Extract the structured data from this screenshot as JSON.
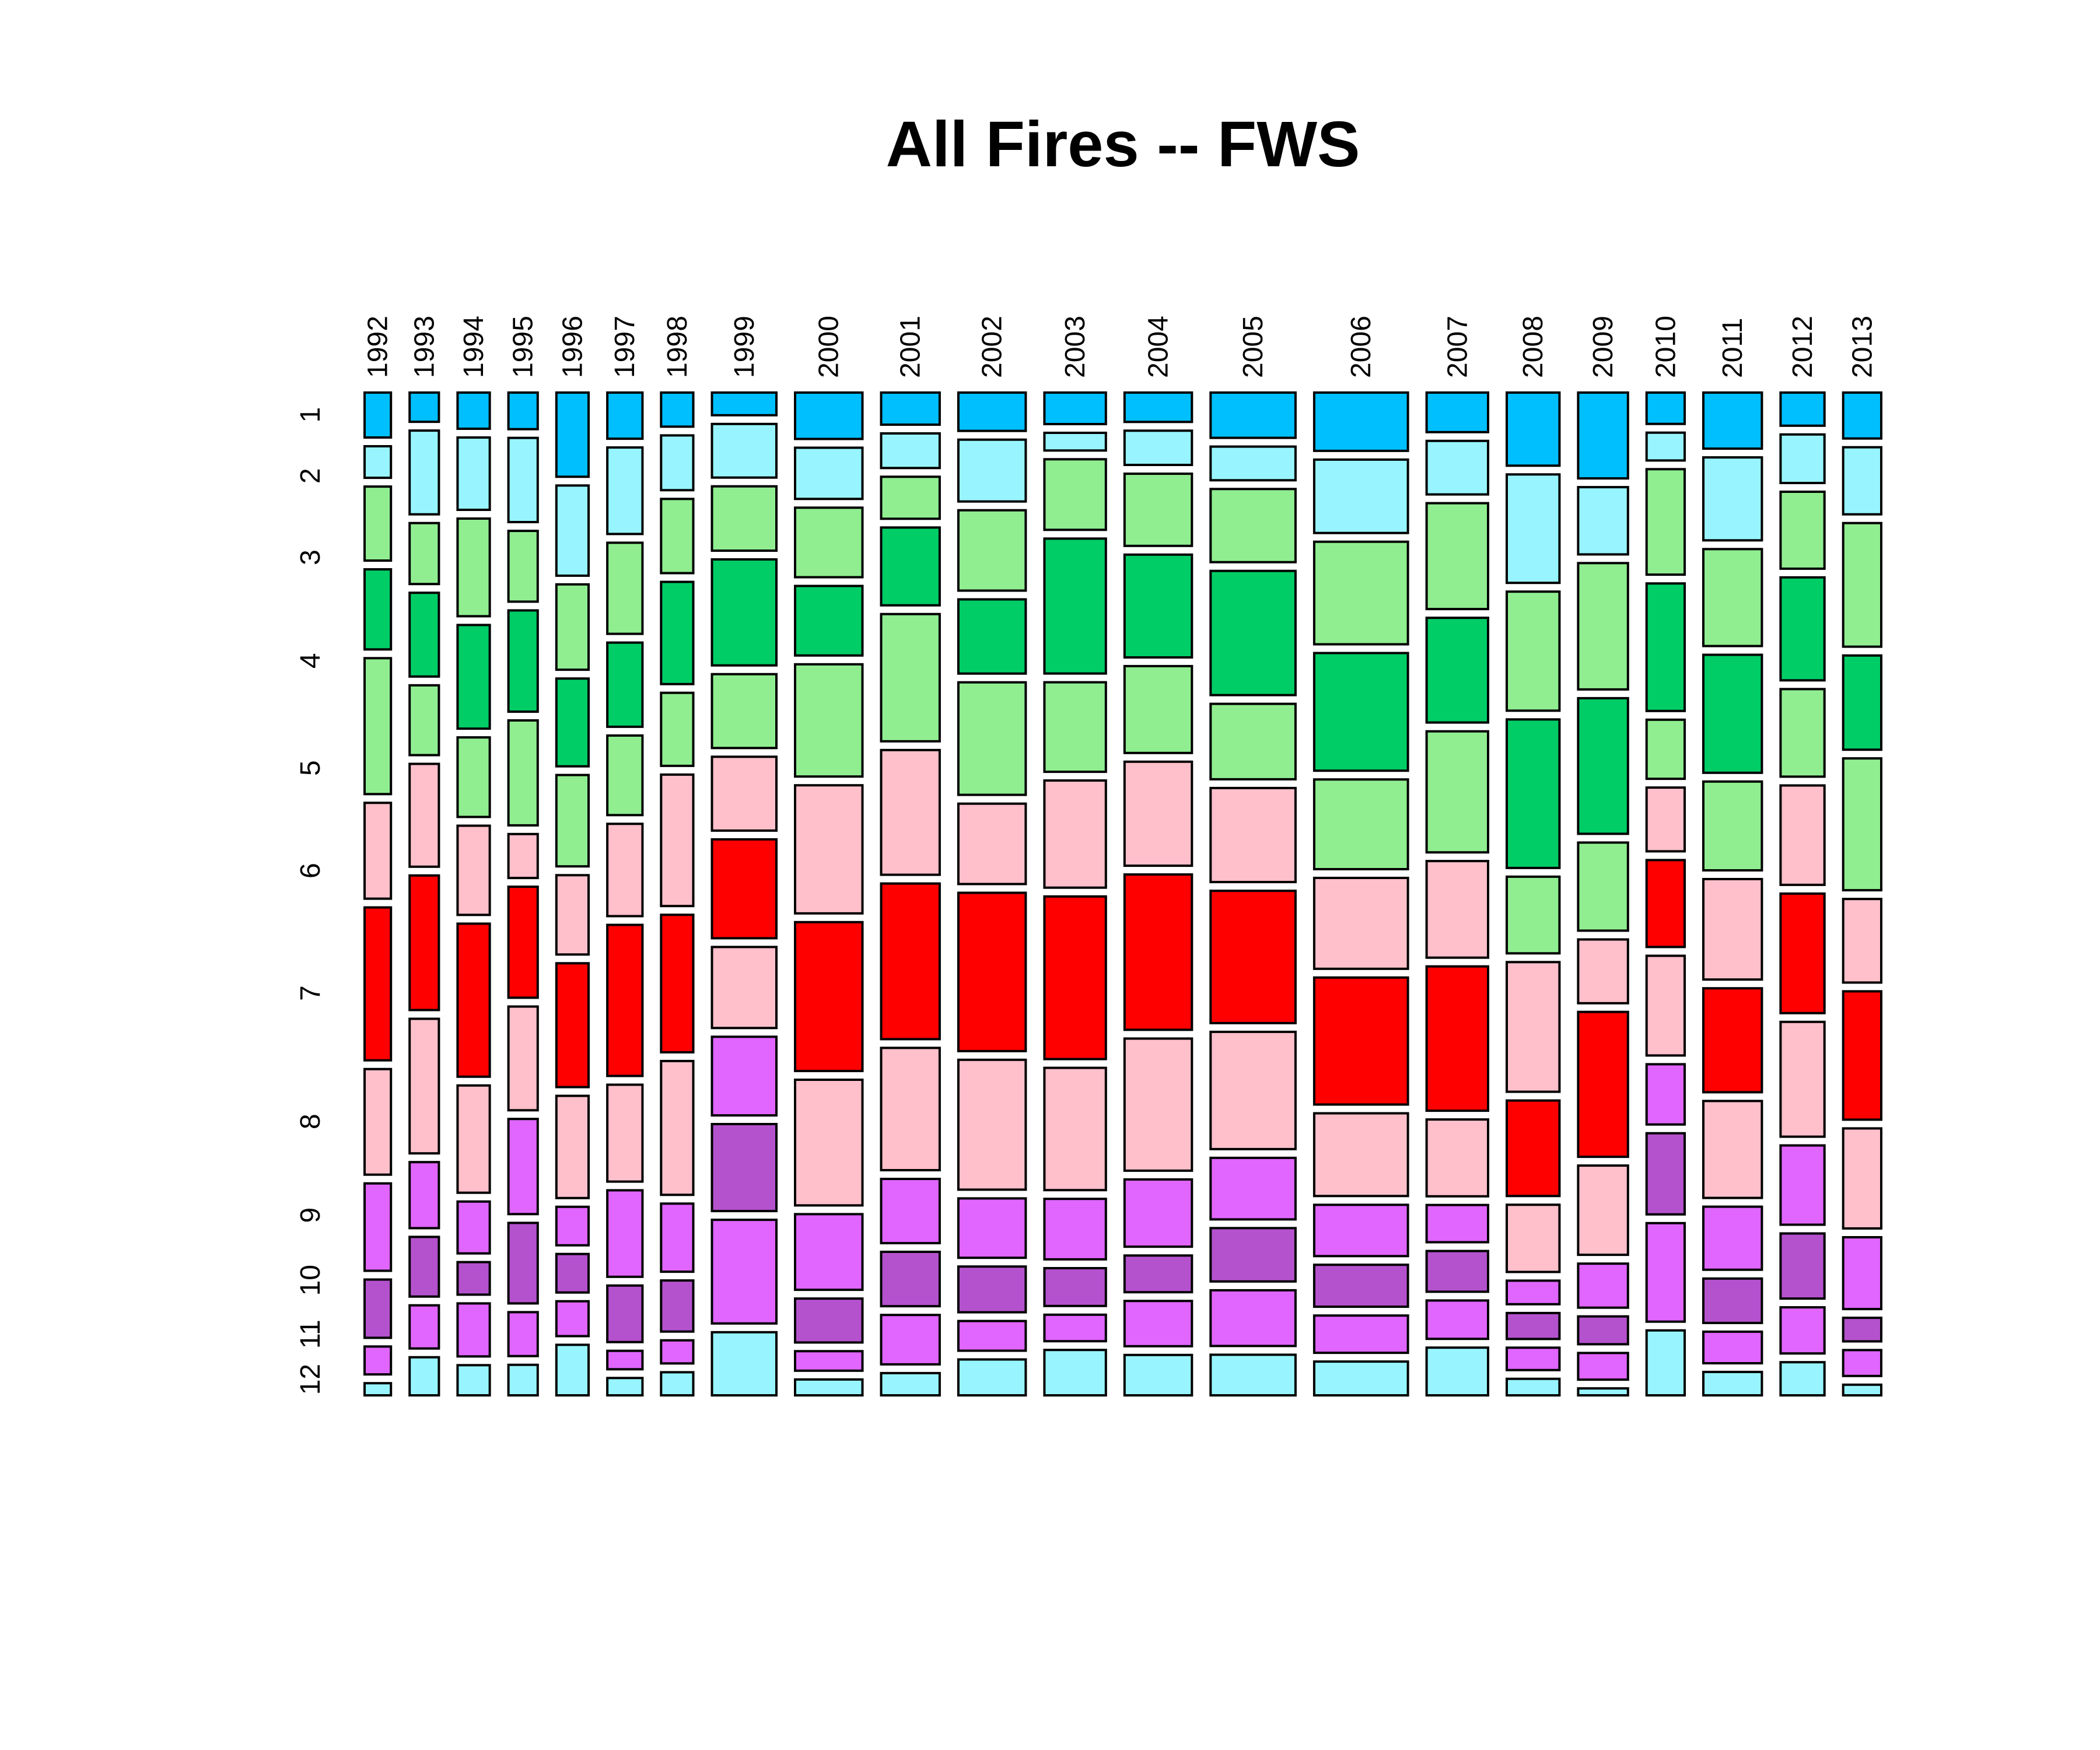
{
  "chart_data": {
    "type": "mosaic",
    "title": "All Fires -- FWS",
    "columns": [
      "1992",
      "1993",
      "1994",
      "1995",
      "1996",
      "1997",
      "1998",
      "1999",
      "2000",
      "2001",
      "2002",
      "2003",
      "2004",
      "2005",
      "2006",
      "2007",
      "2008",
      "2009",
      "2010",
      "2011",
      "2012",
      "2013"
    ],
    "rows": [
      "1",
      "2",
      "3",
      "4",
      "5",
      "6",
      "7",
      "8",
      "9",
      "10",
      "11",
      "12"
    ],
    "column_weights": [
      0.9,
      1.0,
      1.1,
      1.0,
      1.1,
      1.2,
      1.1,
      2.2,
      2.3,
      2.0,
      2.3,
      2.1,
      2.3,
      2.9,
      3.2,
      2.1,
      1.8,
      1.7,
      1.3,
      2.0,
      1.5,
      1.3
    ],
    "cell_shares": [
      [
        3.7,
        2.6,
        6.1,
        6.6,
        11.2,
        7.9,
        12.6,
        8.7,
        7.2,
        4.8,
        2.3,
        1.0
      ],
      [
        2.3,
        6.6,
        4.8,
        6.6,
        5.5,
        8.1,
        10.6,
        10.6,
        5.2,
        4.7,
        3.4,
        3.0
      ],
      [
        3.0,
        6.0,
        8.1,
        8.6,
        6.6,
        7.4,
        12.7,
        8.9,
        4.3,
        2.7,
        4.4,
        2.5
      ],
      [
        3.0,
        6.9,
        5.8,
        8.3,
        8.6,
        3.6,
        9.1,
        8.5,
        7.8,
        6.6,
        3.6,
        2.5
      ],
      [
        7.0,
        7.5,
        7.1,
        7.3,
        7.6,
        6.6,
        10.3,
        8.5,
        3.2,
        3.2,
        2.9,
        4.2
      ],
      [
        4.0,
        7.5,
        7.9,
        7.3,
        6.9,
        8.0,
        13.1,
        8.4,
        7.5,
        4.9,
        1.6,
        1.5
      ],
      [
        2.8,
        4.5,
        6.1,
        8.4,
        6.0,
        10.8,
        11.3,
        11.0,
        5.6,
        4.2,
        1.9,
        1.9
      ],
      [
        1.9,
        4.5,
        5.4,
        8.9,
        6.2,
        6.2,
        8.3,
        6.8,
        6.6,
        7.3,
        8.7,
        5.3
      ],
      [
        3.8,
        4.2,
        5.7,
        5.7,
        9.2,
        10.5,
        12.2,
        10.3,
        6.2,
        3.6,
        1.6,
        1.3
      ],
      [
        2.6,
        2.8,
        3.4,
        6.3,
        10.3,
        10.1,
        12.6,
        9.9,
        5.2,
        4.4,
        4.0,
        1.8
      ],
      [
        3.1,
        5.0,
        6.5,
        6.0,
        9.1,
        6.5,
        12.8,
        10.5,
        4.8,
        3.7,
        2.4,
        2.9
      ],
      [
        2.5,
        1.4,
        5.6,
        10.7,
        7.1,
        8.5,
        12.9,
        9.7,
        4.8,
        3.0,
        2.1,
        3.6
      ],
      [
        2.4,
        2.8,
        5.9,
        8.4,
        7.1,
        8.5,
        12.7,
        10.8,
        5.5,
        3.0,
        3.7,
        3.3
      ],
      [
        3.9,
        2.9,
        6.3,
        10.7,
        6.5,
        8.1,
        11.4,
        10.1,
        5.3,
        4.6,
        4.8,
        3.5
      ],
      [
        5.0,
        6.3,
        8.8,
        10.1,
        7.7,
        7.8,
        10.9,
        7.1,
        4.4,
        3.6,
        3.2,
        2.9
      ],
      [
        3.4,
        4.6,
        9.1,
        9.0,
        10.4,
        8.3,
        12.4,
        6.6,
        3.2,
        3.5,
        3.3,
        4.1
      ],
      [
        6.2,
        9.2,
        10.1,
        12.6,
        6.5,
        11.0,
        8.1,
        5.7,
        2.0,
        2.2,
        1.9,
        1.4
      ],
      [
        7.4,
        5.8,
        10.9,
        11.7,
        7.6,
        5.5,
        12.5,
        7.7,
        3.8,
        2.4,
        2.3,
        0.6
      ],
      [
        2.7,
        2.4,
        9.1,
        11.0,
        5.1,
        5.5,
        7.5,
        8.6,
        5.2,
        7.0,
        8.5,
        5.6
      ],
      [
        4.8,
        7.1,
        8.3,
        10.1,
        7.6,
        8.6,
        8.9,
        8.3,
        5.4,
        3.8,
        2.7,
        2.0
      ],
      [
        2.8,
        4.1,
        6.5,
        8.7,
        7.4,
        8.4,
        10.1,
        9.7,
        6.7,
        5.5,
        3.9,
        2.8
      ],
      [
        3.9,
        5.7,
        10.5,
        8.0,
        11.2,
        7.1,
        10.9,
        8.5,
        6.1,
        2.0,
        2.2,
        0.9
      ]
    ],
    "row_colors": [
      "#00bfff",
      "#98f5ff",
      "#90ee90",
      "#00cd66",
      "#90ee90",
      "#ffc0cb",
      "#ff0000",
      "#ffc0cb",
      "#e066ff",
      "#b452cd",
      "#e066ff",
      "#98f5ff"
    ],
    "xlabel": "",
    "ylabel": ""
  }
}
